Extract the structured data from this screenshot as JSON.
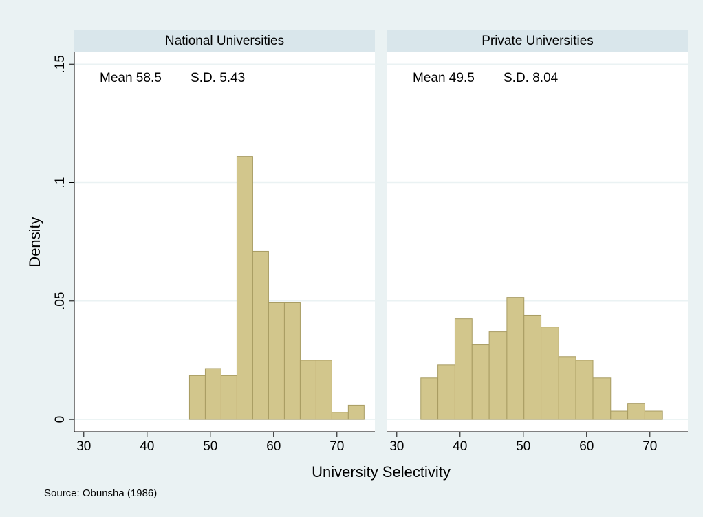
{
  "chart_data": {
    "type": "histogram",
    "y_label": "Density",
    "x_label": "University Selectivity",
    "note": "Source: Obunsha (1986)",
    "ylim": [
      -0.0052,
      0.155
    ],
    "yticks": [
      0,
      {
        "value": 0.05,
        "label": ".05"
      },
      {
        "value": 0.1,
        "label": ".1"
      },
      {
        "value": 0.15,
        "label": ".15"
      }
    ],
    "xlim": [
      28.5,
      76
    ],
    "xticks": [
      30,
      40,
      50,
      60,
      70
    ],
    "grid": true,
    "color": "#d2c68c",
    "edge_color": "#a89c62",
    "panels": [
      {
        "title": "National Universities",
        "annotations": [
          "Mean 58.5",
          "S.D. 5.43"
        ],
        "bins": [
          46.7,
          49.2,
          51.7,
          54.2,
          56.7,
          59.2,
          61.7,
          64.2,
          66.7,
          69.2,
          71.8,
          74.3
        ],
        "values": [
          0.0185,
          0.0215,
          0.0185,
          0.111,
          0.071,
          0.0495,
          0.0495,
          0.025,
          0.025,
          0.003,
          0.006
        ]
      },
      {
        "title": "Private Universities",
        "annotations": [
          "Mean 49.5",
          "S.D. 8.04"
        ],
        "bins": [
          33.8,
          36.5,
          39.2,
          41.9,
          44.6,
          47.4,
          50.1,
          52.8,
          55.6,
          58.3,
          61.0,
          63.8,
          66.5,
          69.2,
          72.0
        ],
        "values": [
          0.0175,
          0.023,
          0.0425,
          0.0315,
          0.037,
          0.0515,
          0.044,
          0.039,
          0.0265,
          0.025,
          0.0175,
          0.0035,
          0.0068,
          0.0035
        ]
      }
    ]
  }
}
